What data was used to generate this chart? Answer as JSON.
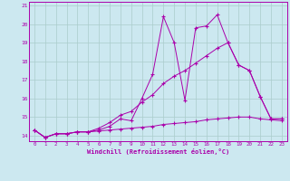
{
  "xlabel": "Windchill (Refroidissement éolien,°C)",
  "background_color": "#cce8f0",
  "grid_color": "#aacccc",
  "line_color": "#aa00aa",
  "x_hours": [
    0,
    1,
    2,
    3,
    4,
    5,
    6,
    7,
    8,
    9,
    10,
    11,
    12,
    13,
    14,
    15,
    16,
    17,
    18,
    19,
    20,
    21,
    22,
    23
  ],
  "series1": [
    14.3,
    13.9,
    14.1,
    14.1,
    14.2,
    14.2,
    14.3,
    14.5,
    14.9,
    14.8,
    16.0,
    17.3,
    20.4,
    19.0,
    15.9,
    19.8,
    19.9,
    20.5,
    19.0,
    17.8,
    17.5,
    16.1,
    14.9,
    14.9
  ],
  "series2": [
    14.3,
    13.9,
    14.1,
    14.1,
    14.2,
    14.2,
    14.25,
    14.3,
    14.35,
    14.4,
    14.45,
    14.5,
    14.6,
    14.65,
    14.7,
    14.75,
    14.85,
    14.9,
    14.95,
    15.0,
    15.0,
    14.9,
    14.85,
    14.8
  ],
  "series3": [
    14.3,
    13.9,
    14.1,
    14.1,
    14.2,
    14.2,
    14.4,
    14.7,
    15.1,
    15.3,
    15.8,
    16.2,
    16.8,
    17.2,
    17.5,
    17.9,
    18.3,
    18.7,
    19.0,
    17.8,
    17.5,
    16.1,
    14.9,
    14.9
  ],
  "ylim": [
    13.7,
    21.2
  ],
  "yticks": [
    14,
    15,
    16,
    17,
    18,
    19,
    20,
    21
  ],
  "ytick_labels": [
    "14",
    "15",
    "16",
    "17",
    "18",
    "19",
    "20",
    "21"
  ]
}
